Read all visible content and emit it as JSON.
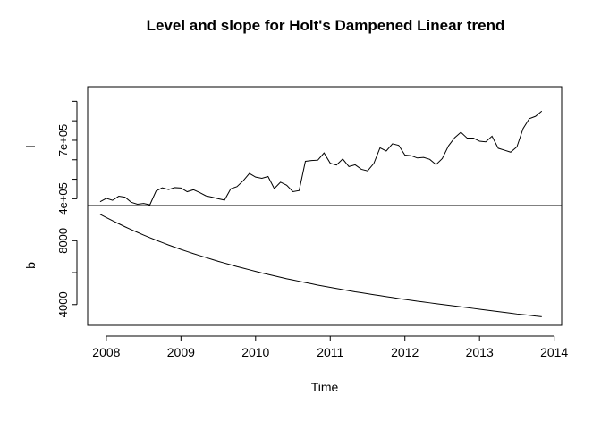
{
  "chart_data": {
    "type": "line",
    "title": "Level and slope for Holt's Dampened Linear trend",
    "xlabel": "Time",
    "xlim": [
      2007.75,
      2014.1
    ],
    "x_ticks": [
      2008,
      2009,
      2010,
      2011,
      2012,
      2013,
      2014
    ],
    "x_tick_labels": [
      "2008",
      "2009",
      "2010",
      "2011",
      "2012",
      "2013",
      "2014"
    ],
    "grid": false,
    "legend": "none",
    "panels": [
      {
        "ylabel": "l",
        "ylim": [
          365000,
          975000
        ],
        "y_ticks": [
          400000,
          500000,
          600000,
          700000,
          800000,
          900000
        ],
        "y_tick_labels": [
          "4e+05",
          "",
          "",
          "7e+05",
          "",
          ""
        ],
        "series": [
          {
            "x_start": 2007.917,
            "x_step": 0.083333,
            "values": [
              385000,
              402000,
              392000,
              413000,
              408000,
              382000,
              372000,
              376000,
              369000,
              440000,
              456000,
              447000,
              457000,
              455000,
              436000,
              446000,
              432000,
              415000,
              408000,
              400000,
              393000,
              451000,
              462000,
              492000,
              530000,
              511000,
              505000,
              514000,
              452000,
              485000,
              469000,
              436000,
              442000,
              592000,
              596000,
              598000,
              635000,
              582000,
              573000,
              604000,
              565000,
              574000,
              551000,
              543000,
              581000,
              661000,
              645000,
              682000,
              674000,
              624000,
              621000,
              609000,
              612000,
              602000,
              575000,
              606000,
              671000,
              713000,
              741000,
              711000,
              711000,
              695000,
              692000,
              721000,
              659000,
              649000,
              639000,
              666000,
              760000,
              811000,
              823000,
              850000
            ]
          }
        ]
      },
      {
        "ylabel": "b",
        "ylim": [
          2700,
          10200
        ],
        "y_ticks": [
          4000,
          6000,
          8000
        ],
        "y_tick_labels": [
          "4000",
          "",
          "8000"
        ],
        "series": [
          {
            "x_start": 2007.917,
            "x_step": 0.083333,
            "values": [
              9650,
              9450,
              9250,
              9060,
              8870,
              8690,
              8520,
              8350,
              8190,
              8030,
              7880,
              7730,
              7590,
              7450,
              7320,
              7190,
              7070,
              6950,
              6830,
              6710,
              6600,
              6490,
              6380,
              6280,
              6180,
              6080,
              5980,
              5890,
              5800,
              5710,
              5620,
              5540,
              5460,
              5380,
              5300,
              5220,
              5150,
              5080,
              5010,
              4940,
              4870,
              4800,
              4740,
              4680,
              4620,
              4560,
              4500,
              4440,
              4380,
              4320,
              4270,
              4210,
              4160,
              4110,
              4060,
              4010,
              3960,
              3910,
              3860,
              3810,
              3760,
              3710,
              3660,
              3610,
              3560,
              3510,
              3460,
              3410,
              3370,
              3330,
              3280,
              3240
            ]
          }
        ]
      }
    ]
  }
}
